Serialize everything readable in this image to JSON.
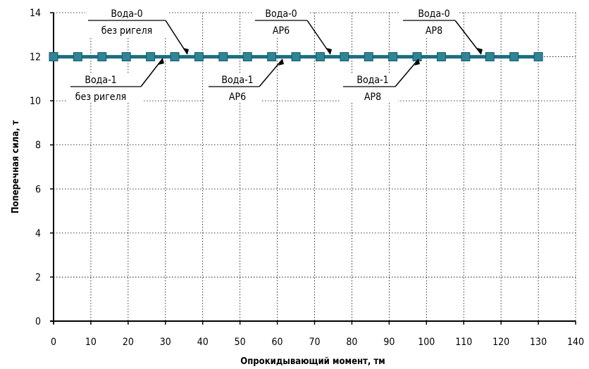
{
  "chart_data": {
    "type": "line",
    "xlabel": "Опрокидывающий момент, тм",
    "ylabel": "Поперечная сила, т",
    "xlim": [
      0,
      140
    ],
    "ylim": [
      0,
      14
    ],
    "x_ticks": [
      "0",
      "10",
      "20",
      "30",
      "40",
      "50",
      "60",
      "70",
      "80",
      "90",
      "100",
      "110",
      "120",
      "130",
      "140"
    ],
    "y_ticks": [
      "0",
      "2",
      "4",
      "6",
      "8",
      "10",
      "12",
      "14"
    ],
    "grid": true,
    "colors": {
      "series": "#1c6f80",
      "marker": "#2d8596"
    },
    "series": [
      {
        "values_x": [
          0,
          6.5,
          13,
          19.5,
          26,
          32.5,
          39,
          45.5,
          52,
          58.5,
          65,
          71.5,
          78,
          84.5,
          91,
          97.5,
          104,
          110.5,
          117,
          123.5,
          130
        ],
        "values_y": [
          12,
          12,
          12,
          12,
          12,
          12,
          12,
          12,
          12,
          12,
          12,
          12,
          12,
          12,
          12,
          12,
          12,
          12,
          12,
          12,
          12
        ]
      }
    ],
    "annotations": [
      {
        "line1": "Вода-0",
        "line2": "без ригеля"
      },
      {
        "line1": "Вода-1",
        "line2": "без ригеля"
      },
      {
        "line1": "Вода-0",
        "line2": "АР6"
      },
      {
        "line1": "Вода-1",
        "line2": "АР6"
      },
      {
        "line1": "Вода-0",
        "line2": "АР8"
      },
      {
        "line1": "Вода-1",
        "line2": "АР8"
      }
    ]
  }
}
